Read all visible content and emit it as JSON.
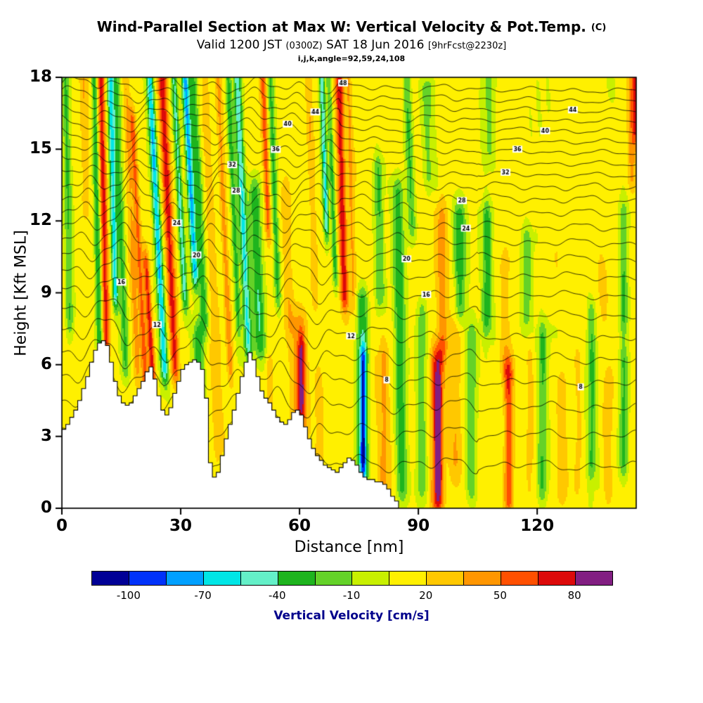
{
  "header": {
    "title_main": "Wind-Parallel Section at Max W: Vertical Velocity & Pot.Temp.",
    "title_suffix": "(C)",
    "valid_pre": "Valid 1200 JST ",
    "valid_small1": "(0300Z)",
    "valid_mid": " SAT 18 Jun 2016 ",
    "valid_small2": "[9hrFcst@2230z]",
    "index_line": "i,j,k,angle=92,59,24,108"
  },
  "chart_data": {
    "type": "heatmap",
    "title": "Wind-Parallel Section at Max W: Vertical Velocity & Pot.Temp. (C)",
    "subtitle": "Valid 1200 JST (0300Z) SAT 18 Jun 2016 [9hrFcst@2230z]",
    "annotation": "i,j,k,angle=92,59,24,108",
    "xlabel": "Distance [nm]",
    "ylabel": "Height [Kft MSL]",
    "xlim": [
      0,
      145
    ],
    "ylim": [
      0,
      18
    ],
    "xticks": [
      0,
      30,
      60,
      90,
      120
    ],
    "yticks": [
      0,
      3,
      6,
      9,
      12,
      15,
      18
    ],
    "grid": false,
    "colorbar": {
      "label": "Vertical Velocity [cm/s]",
      "label_color": "#00008B",
      "tick_labels": [
        -100,
        -70,
        -40,
        -10,
        20,
        50,
        80
      ],
      "boundaries": [
        -115,
        -100,
        -85,
        -70,
        -55,
        -40,
        -25,
        -10,
        5,
        20,
        35,
        50,
        65,
        80,
        95
      ],
      "colors": [
        "#000096",
        "#0032FA",
        "#00A0FF",
        "#00E6E6",
        "#64F0C8",
        "#1EB41E",
        "#64D228",
        "#C8F000",
        "#FFF000",
        "#FFC800",
        "#FF9600",
        "#FF5000",
        "#DC0A0A",
        "#821E82"
      ]
    },
    "contours": {
      "variable": "Potential Temperature (C)",
      "levels": [
        48,
        46,
        44,
        42,
        40,
        38,
        36,
        34,
        32,
        30,
        28,
        26,
        24,
        22,
        20,
        18,
        16,
        14,
        12,
        10,
        8,
        6,
        4,
        2
      ],
      "heights_kft": [
        17.75,
        17.32,
        16.9,
        16.48,
        16.05,
        15.6,
        15.15,
        14.68,
        14.2,
        13.7,
        13.18,
        12.62,
        12.02,
        11.38,
        10.7,
        9.97,
        9.18,
        8.34,
        7.45,
        6.52,
        5.55,
        4.5,
        3.35,
        2.05
      ]
    },
    "terrain_profile": [
      [
        0,
        3.3
      ],
      [
        1,
        3.5
      ],
      [
        2,
        3.8
      ],
      [
        3,
        4.1
      ],
      [
        4,
        4.5
      ],
      [
        5,
        5.0
      ],
      [
        6,
        5.5
      ],
      [
        7,
        6.1
      ],
      [
        8,
        6.6
      ],
      [
        9,
        6.9
      ],
      [
        10,
        7.0
      ],
      [
        11,
        6.8
      ],
      [
        12,
        6.1
      ],
      [
        13,
        5.3
      ],
      [
        14,
        4.7
      ],
      [
        15,
        4.4
      ],
      [
        16,
        4.3
      ],
      [
        17,
        4.4
      ],
      [
        18,
        4.7
      ],
      [
        19,
        5.0
      ],
      [
        20,
        5.3
      ],
      [
        21,
        5.7
      ],
      [
        22,
        5.9
      ],
      [
        23,
        5.4
      ],
      [
        24,
        4.7
      ],
      [
        25,
        4.1
      ],
      [
        26,
        3.9
      ],
      [
        27,
        4.2
      ],
      [
        28,
        4.8
      ],
      [
        29,
        5.3
      ],
      [
        30,
        5.8
      ],
      [
        31,
        6.0
      ],
      [
        32,
        6.1
      ],
      [
        33,
        6.2
      ],
      [
        34,
        6.1
      ],
      [
        35,
        5.8
      ],
      [
        36,
        4.6
      ],
      [
        37,
        1.9
      ],
      [
        38,
        1.3
      ],
      [
        39,
        1.5
      ],
      [
        40,
        2.2
      ],
      [
        41,
        2.9
      ],
      [
        42,
        3.5
      ],
      [
        43,
        4.1
      ],
      [
        44,
        4.8
      ],
      [
        45,
        5.5
      ],
      [
        46,
        6.1
      ],
      [
        47,
        6.5
      ],
      [
        48,
        6.2
      ],
      [
        49,
        5.5
      ],
      [
        50,
        4.9
      ],
      [
        51,
        4.6
      ],
      [
        52,
        4.4
      ],
      [
        53,
        4.1
      ],
      [
        54,
        3.8
      ],
      [
        55,
        3.6
      ],
      [
        56,
        3.5
      ],
      [
        57,
        3.7
      ],
      [
        58,
        4.0
      ],
      [
        59,
        4.1
      ],
      [
        60,
        3.9
      ],
      [
        61,
        3.4
      ],
      [
        62,
        2.9
      ],
      [
        63,
        2.5
      ],
      [
        64,
        2.2
      ],
      [
        65,
        2.0
      ],
      [
        66,
        1.8
      ],
      [
        67,
        1.7
      ],
      [
        68,
        1.6
      ],
      [
        69,
        1.5
      ],
      [
        70,
        1.7
      ],
      [
        71,
        1.9
      ],
      [
        72,
        2.1
      ],
      [
        73,
        2.0
      ],
      [
        74,
        1.8
      ],
      [
        75,
        1.5
      ],
      [
        76,
        1.3
      ],
      [
        77,
        1.2
      ],
      [
        78,
        1.2
      ],
      [
        79,
        1.1
      ],
      [
        80,
        1.1
      ],
      [
        81,
        1.0
      ],
      [
        82,
        0.8
      ],
      [
        83,
        0.5
      ],
      [
        84,
        0.3
      ],
      [
        85,
        0.0
      ]
    ],
    "features": {
      "format": [
        "x_nm",
        "y_bottom_kft",
        "y_top_kft",
        "width_nm",
        "tilt_nm_per_kft",
        "value_cm_s"
      ],
      "list": [
        [
          2,
          8,
          18,
          1.0,
          -0.1,
          -25
        ],
        [
          6,
          13,
          18,
          1.0,
          -0.1,
          30
        ],
        [
          9.5,
          7,
          18,
          0.8,
          -0.12,
          -40
        ],
        [
          11.2,
          7,
          18,
          0.9,
          -0.12,
          68
        ],
        [
          13.5,
          9,
          18,
          0.8,
          -0.15,
          -62
        ],
        [
          16,
          6,
          18,
          1.1,
          -0.2,
          -30
        ],
        [
          19,
          6,
          18,
          0.9,
          -0.25,
          38
        ],
        [
          21.5,
          4,
          16,
          0.8,
          -0.3,
          55
        ],
        [
          23.8,
          3,
          10,
          0.8,
          -0.35,
          72
        ],
        [
          25.8,
          6,
          18,
          0.9,
          -0.3,
          -65
        ],
        [
          28.6,
          6,
          18,
          1.1,
          -0.28,
          76
        ],
        [
          31,
          9,
          18,
          0.8,
          -0.3,
          -45
        ],
        [
          33.5,
          10,
          18,
          0.9,
          -0.3,
          -72
        ],
        [
          36,
          8,
          18,
          1.1,
          -0.3,
          -32
        ],
        [
          34.5,
          1.5,
          7,
          1.4,
          0,
          -35
        ],
        [
          39.5,
          3,
          18,
          1.2,
          -0.22,
          32
        ],
        [
          42.5,
          6,
          18,
          0.9,
          -0.25,
          45
        ],
        [
          44.5,
          8,
          18,
          0.7,
          -0.25,
          -28
        ],
        [
          47,
          7,
          18,
          1.0,
          -0.25,
          -52
        ],
        [
          50,
          7,
          13,
          1.5,
          -0.2,
          -35
        ],
        [
          52,
          12,
          18,
          0.8,
          -0.2,
          55
        ],
        [
          54.5,
          9,
          18,
          0.9,
          -0.2,
          -30
        ],
        [
          57.5,
          8,
          13,
          1.1,
          -0.2,
          30
        ],
        [
          60,
          3.5,
          7.5,
          2.0,
          0,
          42
        ],
        [
          60.5,
          4.5,
          6.5,
          0.9,
          0,
          58
        ],
        [
          52.5,
          3,
          5.5,
          1.0,
          0,
          35
        ],
        [
          64,
          9,
          18,
          0.9,
          -0.2,
          35
        ],
        [
          65,
          2.5,
          5,
          1.2,
          0,
          28
        ],
        [
          66.8,
          12,
          18,
          0.7,
          -0.2,
          -58
        ],
        [
          69,
          10,
          18,
          0.7,
          -0.2,
          -30
        ],
        [
          71.3,
          9,
          18,
          1.0,
          -0.15,
          70
        ],
        [
          73.8,
          9,
          18,
          0.7,
          -0.15,
          35
        ],
        [
          76,
          1,
          8.5,
          1.6,
          0,
          -40
        ],
        [
          76.3,
          2,
          6,
          0.8,
          0,
          -58
        ],
        [
          80.5,
          9,
          14,
          1.3,
          -0.1,
          -25
        ],
        [
          81.5,
          1,
          6,
          1.3,
          0,
          35
        ],
        [
          86,
          1,
          13,
          1.5,
          -0.08,
          -35
        ],
        [
          88.5,
          12,
          18,
          1.1,
          -0.2,
          -28
        ],
        [
          91,
          1,
          8,
          1.3,
          0,
          -20
        ],
        [
          95,
          0.5,
          6,
          1.5,
          0,
          75
        ],
        [
          95.2,
          1.5,
          4.5,
          0.6,
          0,
          92
        ],
        [
          96.5,
          7,
          12,
          1.3,
          -0.1,
          40
        ],
        [
          99.5,
          2,
          9,
          1.3,
          0,
          30
        ],
        [
          100.5,
          8.5,
          12,
          1.6,
          0,
          -38
        ],
        [
          103.5,
          1,
          7,
          1.4,
          0,
          -25
        ],
        [
          107.5,
          8,
          12,
          1.3,
          0,
          -30
        ],
        [
          113,
          0.5,
          5.5,
          1.2,
          0,
          66
        ],
        [
          112,
          6,
          10,
          1.3,
          0,
          30
        ],
        [
          117.5,
          8,
          11,
          1.5,
          0,
          -20
        ],
        [
          118.5,
          1,
          6,
          1.3,
          0,
          24
        ],
        [
          121.5,
          1,
          7,
          1.4,
          0,
          -26
        ],
        [
          126.5,
          1,
          5,
          1.4,
          0,
          34
        ],
        [
          130.5,
          1,
          6,
          1.3,
          0,
          28
        ],
        [
          134,
          2,
          8,
          1.2,
          0,
          -25
        ],
        [
          138,
          1,
          5,
          1.2,
          0,
          30
        ],
        [
          142,
          2,
          6,
          1.2,
          0,
          -30
        ],
        [
          142,
          8,
          12,
          1.1,
          0,
          -24
        ],
        [
          136,
          8,
          10,
          2.5,
          0,
          20
        ],
        [
          125,
          9,
          13,
          2.0,
          0,
          22
        ],
        [
          144,
          14,
          18,
          1.1,
          0,
          46
        ],
        [
          145,
          16,
          18,
          0.7,
          0,
          62
        ],
        [
          93,
          14,
          17.5,
          2.0,
          -0.2,
          -18
        ],
        [
          108,
          15,
          18,
          1.8,
          0,
          -15
        ]
      ]
    }
  }
}
